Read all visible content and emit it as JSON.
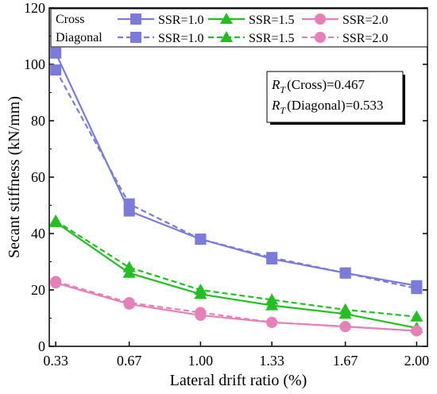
{
  "chart_data": {
    "type": "line",
    "title": "",
    "xlabel": "Lateral drift ratio (%)",
    "ylabel": "Secant stiffness (kN/mm)",
    "x": [
      0.33,
      0.67,
      1.0,
      1.33,
      1.67,
      2.0
    ],
    "x_tick_labels": [
      "0.33",
      "0.67",
      "1.00",
      "1.33",
      "1.67",
      "2.00"
    ],
    "xlim": [
      0.3,
      2.05
    ],
    "ylim": [
      0,
      120
    ],
    "y_ticks": [
      0,
      20,
      40,
      60,
      80,
      100,
      120
    ],
    "grid": false,
    "legend": {
      "placement": "top",
      "row_labels": [
        "Cross",
        "Diagonal"
      ]
    },
    "series": [
      {
        "name": "SSR=1.0",
        "group": "Cross",
        "style": "solid",
        "marker": "square",
        "color": "#7b7bdc",
        "values": [
          104,
          48,
          38,
          31,
          26,
          21.5
        ]
      },
      {
        "name": "SSR=1.5",
        "group": "Cross",
        "style": "solid",
        "marker": "triangle",
        "color": "#22c022",
        "values": [
          44,
          26,
          18.5,
          14.5,
          11.5,
          6.5
        ]
      },
      {
        "name": "SSR=2.0",
        "group": "Cross",
        "style": "solid",
        "marker": "circle",
        "color": "#e77fb8",
        "values": [
          22.5,
          15,
          11,
          8.5,
          7,
          5.5
        ]
      },
      {
        "name": "SSR=1.0",
        "group": "Diagonal",
        "style": "dashed",
        "marker": "square",
        "color": "#7b7bdc",
        "values": [
          98,
          50.5,
          38,
          31.5,
          26,
          20.5
        ]
      },
      {
        "name": "SSR=1.5",
        "group": "Diagonal",
        "style": "dashed",
        "marker": "triangle",
        "color": "#22c022",
        "values": [
          44.5,
          28,
          20,
          16.5,
          13,
          10.5
        ]
      },
      {
        "name": "SSR=2.0",
        "group": "Diagonal",
        "style": "dashed",
        "marker": "circle",
        "color": "#e77fb8",
        "values": [
          23,
          15.5,
          12,
          8.5,
          7,
          5.5
        ]
      }
    ],
    "annotations": {
      "cross": {
        "label": "(Cross)=0.467"
      },
      "diagonal": {
        "label": "(Diagonal)=0.533"
      },
      "symbol": "R",
      "subscript": "T"
    }
  }
}
